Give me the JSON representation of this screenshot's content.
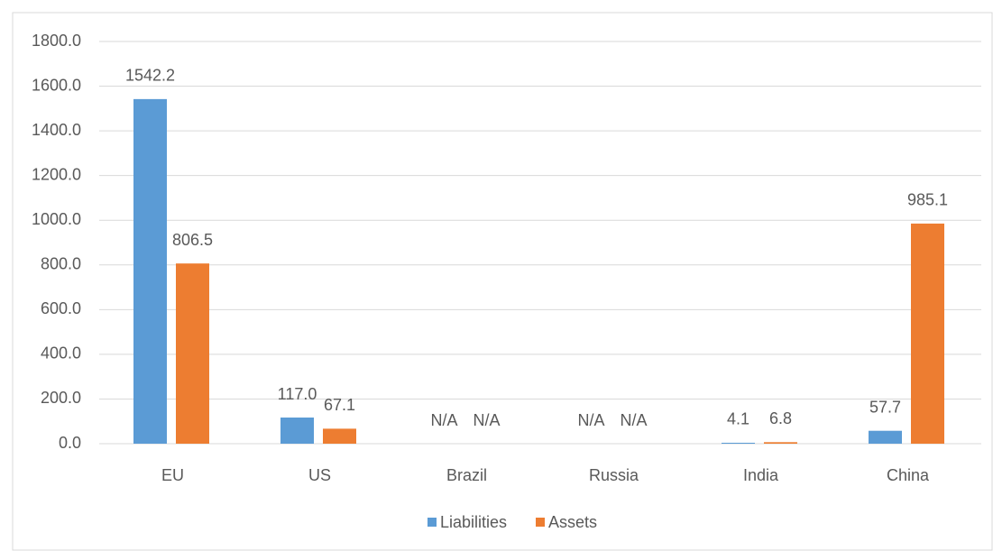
{
  "chart_data": {
    "type": "bar",
    "categories": [
      "EU",
      "US",
      "Brazil",
      "Russia",
      "India",
      "China"
    ],
    "series": [
      {
        "name": "Liabilities",
        "color": "#5b9bd5",
        "values": [
          1542.2,
          117,
          null,
          null,
          4.1,
          57.7
        ],
        "value_labels": [
          "1542.2",
          "117.0",
          "N/A",
          "N/A",
          "4.1",
          "57.7"
        ]
      },
      {
        "name": "Assets",
        "color": "#ed7d31",
        "values": [
          806.5,
          67.1,
          null,
          null,
          6.8,
          985.1
        ],
        "value_labels": [
          "806.5",
          "67.1",
          "N/A",
          "N/A",
          "6.8",
          "985.1"
        ]
      }
    ],
    "ylim": [
      0,
      1800
    ],
    "yticks": [
      {
        "value": 0,
        "label": "0.0"
      },
      {
        "value": 200,
        "label": "200.0"
      },
      {
        "value": 400,
        "label": "400.0"
      },
      {
        "value": 600,
        "label": "600.0"
      },
      {
        "value": 800,
        "label": "800.0"
      },
      {
        "value": 1000,
        "label": "1000.0"
      },
      {
        "value": 1200,
        "label": "1200.0"
      },
      {
        "value": 1400,
        "label": "1400.0"
      },
      {
        "value": 1600,
        "label": "1600.0"
      },
      {
        "value": 1800,
        "label": "1800.0"
      }
    ],
    "grid": true,
    "legend": "bottom"
  }
}
